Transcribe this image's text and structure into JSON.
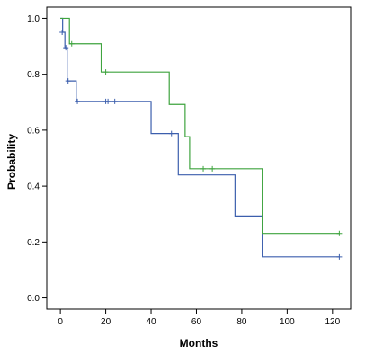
{
  "chart_data": {
    "type": "line",
    "subtype": "kaplan-meier step",
    "xlabel": "Months",
    "ylabel": "Probability",
    "xlim": [
      -6,
      128
    ],
    "ylim": [
      -0.04,
      1.04
    ],
    "xticks": [
      0,
      20,
      40,
      60,
      80,
      100,
      120
    ],
    "yticks": [
      0.0,
      0.2,
      0.4,
      0.6,
      0.8,
      1.0
    ],
    "grid": false,
    "legend": "none",
    "background": "#ffffff",
    "series": [
      {
        "color": "#3c5fad",
        "steps": [
          {
            "x": 0,
            "y": 1.0
          },
          {
            "x": 1,
            "y": 0.95
          },
          {
            "x": 2,
            "y": 0.895
          },
          {
            "x": 3,
            "y": 0.776
          },
          {
            "x": 7,
            "y": 0.703
          },
          {
            "x": 40,
            "y": 0.588
          },
          {
            "x": 52,
            "y": 0.44
          },
          {
            "x": 77,
            "y": 0.293
          },
          {
            "x": 89,
            "y": 0.147
          },
          {
            "x": 123,
            "y": 0.147
          }
        ],
        "censored": [
          {
            "x": 0.8,
            "y": 0.95
          },
          {
            "x": 2.4,
            "y": 0.895
          },
          {
            "x": 3.4,
            "y": 0.776
          },
          {
            "x": 7.5,
            "y": 0.703
          },
          {
            "x": 20,
            "y": 0.703
          },
          {
            "x": 21,
            "y": 0.703
          },
          {
            "x": 24,
            "y": 0.703
          },
          {
            "x": 49,
            "y": 0.588
          },
          {
            "x": 123,
            "y": 0.147
          }
        ]
      },
      {
        "color": "#3fa43f",
        "steps": [
          {
            "x": 0,
            "y": 1.0
          },
          {
            "x": 4,
            "y": 0.909
          },
          {
            "x": 18,
            "y": 0.808
          },
          {
            "x": 48,
            "y": 0.692
          },
          {
            "x": 55,
            "y": 0.577
          },
          {
            "x": 57,
            "y": 0.462
          },
          {
            "x": 89,
            "y": 0.231
          },
          {
            "x": 123,
            "y": 0.231
          }
        ],
        "censored": [
          {
            "x": 5,
            "y": 0.909
          },
          {
            "x": 20,
            "y": 0.808
          },
          {
            "x": 63,
            "y": 0.462
          },
          {
            "x": 67,
            "y": 0.462
          },
          {
            "x": 123,
            "y": 0.231
          }
        ]
      }
    ]
  }
}
